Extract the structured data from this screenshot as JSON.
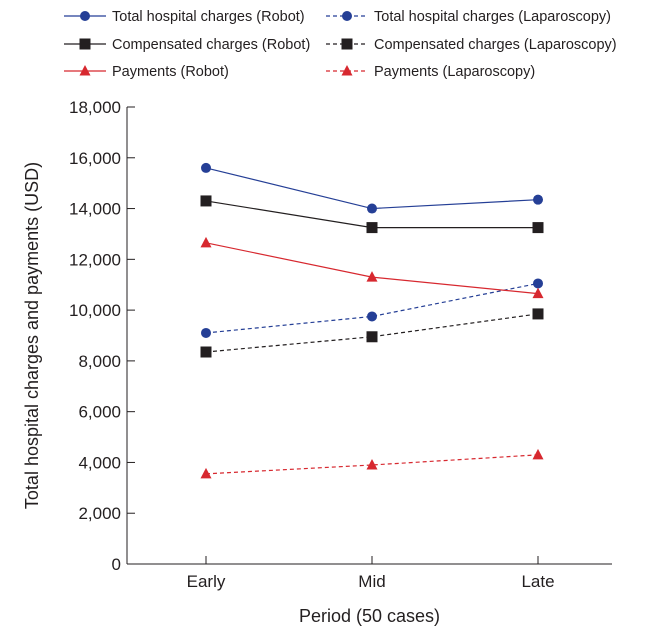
{
  "chart_data": {
    "type": "line",
    "title": "",
    "xlabel": "Period (50 cases)",
    "ylabel": "Total hospital charges and payments (USD)",
    "categories": [
      "Early",
      "Mid",
      "Late"
    ],
    "ylim": [
      0,
      18000
    ],
    "yticks": [
      "0",
      "2,000",
      "4,000",
      "6,000",
      "8,000",
      "10,000",
      "12,000",
      "14,000",
      "16,000",
      "18,000"
    ],
    "ytick_values": [
      0,
      2000,
      4000,
      6000,
      8000,
      10000,
      12000,
      14000,
      16000,
      18000
    ],
    "grid": false,
    "legend_placement": "top",
    "series": [
      {
        "name": "Total hospital charges (Robot)",
        "values": [
          15600,
          14000,
          14350
        ],
        "color": "#253f96",
        "marker": "circle",
        "dashed": false
      },
      {
        "name": "Total hospital charges (Laparoscopy)",
        "values": [
          9100,
          9750,
          11050
        ],
        "color": "#253f96",
        "marker": "circle",
        "dashed": true
      },
      {
        "name": "Compensated charges (Robot)",
        "values": [
          14300,
          13250,
          13250
        ],
        "color": "#231f20",
        "marker": "square",
        "dashed": false
      },
      {
        "name": "Compensated charges (Laparoscopy)",
        "values": [
          8350,
          8950,
          9850
        ],
        "color": "#231f20",
        "marker": "square",
        "dashed": true
      },
      {
        "name": "Payments (Robot)",
        "values": [
          12650,
          11300,
          10650
        ],
        "color": "#d7282f",
        "marker": "triangle",
        "dashed": false
      },
      {
        "name": "Payments (Laparoscopy)",
        "values": [
          3550,
          3900,
          4300
        ],
        "color": "#d7282f",
        "marker": "triangle",
        "dashed": true
      }
    ]
  }
}
